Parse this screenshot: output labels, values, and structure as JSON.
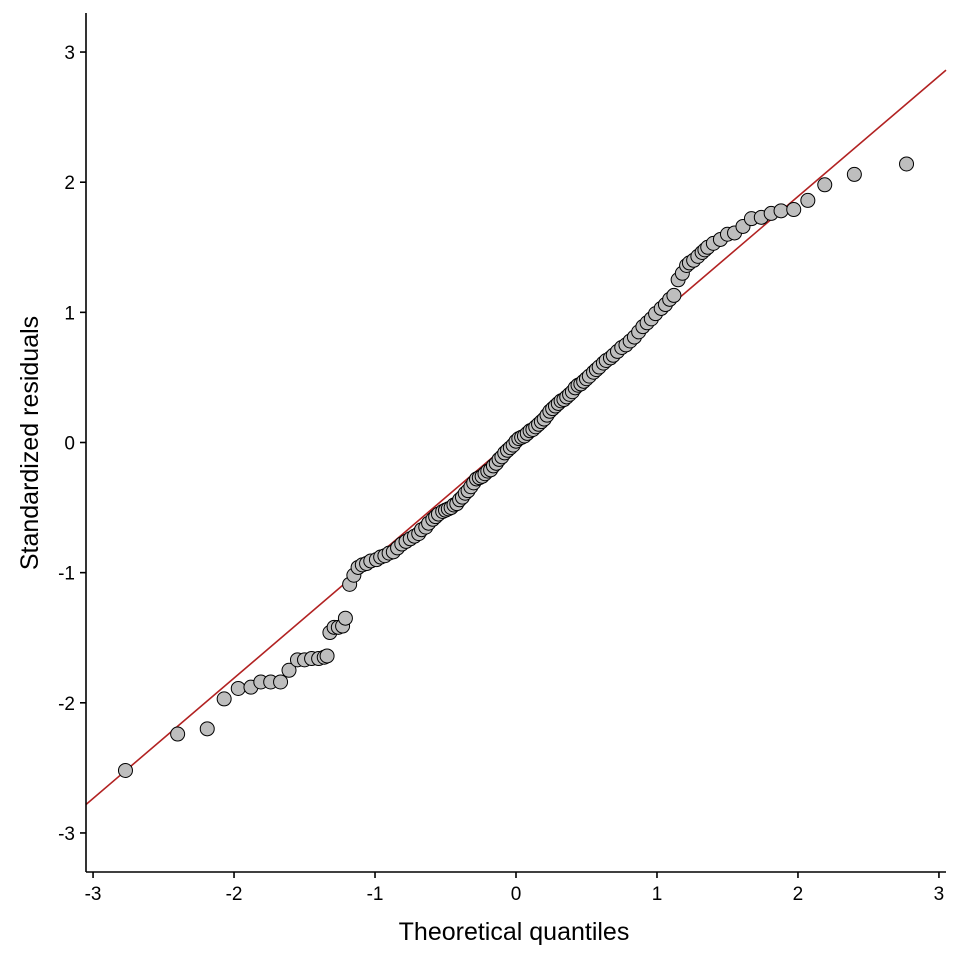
{
  "chart_data": {
    "type": "scatter",
    "title": "",
    "xlabel": "Theoretical quantiles",
    "ylabel": "Standardized residuals",
    "xlim": [
      -3.05,
      3.05
    ],
    "ylim": [
      -3.3,
      3.3
    ],
    "x_ticks": [
      -3,
      -2,
      -1,
      0,
      1,
      2,
      3
    ],
    "y_ticks": [
      -3,
      -2,
      -1,
      0,
      1,
      2,
      3
    ],
    "x_tick_labels": [
      "-3",
      "-2",
      "-1",
      "0",
      "1",
      "2",
      "3"
    ],
    "y_tick_labels": [
      "-3",
      "-2",
      "-1",
      "0",
      "1",
      "2",
      "3"
    ],
    "grid": false,
    "legend": "none",
    "point_fill": "#bebebe",
    "point_stroke": "#000000",
    "reference_line": {
      "color": "#b22222",
      "intercept": 0.04,
      "slope": 0.925
    },
    "points": [
      [
        -2.77,
        -2.52
      ],
      [
        -2.4,
        -2.24
      ],
      [
        -2.19,
        -2.2
      ],
      [
        -2.07,
        -1.97
      ],
      [
        -1.97,
        -1.89
      ],
      [
        -1.88,
        -1.88
      ],
      [
        -1.81,
        -1.84
      ],
      [
        -1.74,
        -1.84
      ],
      [
        -1.67,
        -1.84
      ],
      [
        -1.61,
        -1.75
      ],
      [
        -1.55,
        -1.67
      ],
      [
        -1.5,
        -1.67
      ],
      [
        -1.45,
        -1.66
      ],
      [
        -1.4,
        -1.66
      ],
      [
        -1.36,
        -1.65
      ],
      [
        -1.34,
        -1.64
      ],
      [
        -1.32,
        -1.46
      ],
      [
        -1.29,
        -1.42
      ],
      [
        -1.26,
        -1.42
      ],
      [
        -1.23,
        -1.41
      ],
      [
        -1.21,
        -1.35
      ],
      [
        -1.18,
        -1.09
      ],
      [
        -1.15,
        -1.02
      ],
      [
        -1.12,
        -0.96
      ],
      [
        -1.09,
        -0.94
      ],
      [
        -1.06,
        -0.93
      ],
      [
        -1.03,
        -0.91
      ],
      [
        -0.99,
        -0.9
      ],
      [
        -0.96,
        -0.88
      ],
      [
        -0.93,
        -0.87
      ],
      [
        -0.9,
        -0.85
      ],
      [
        -0.87,
        -0.84
      ],
      [
        -0.84,
        -0.81
      ],
      [
        -0.81,
        -0.78
      ],
      [
        -0.78,
        -0.76
      ],
      [
        -0.75,
        -0.74
      ],
      [
        -0.72,
        -0.72
      ],
      [
        -0.69,
        -0.7
      ],
      [
        -0.67,
        -0.67
      ],
      [
        -0.64,
        -0.65
      ],
      [
        -0.62,
        -0.62
      ],
      [
        -0.59,
        -0.59
      ],
      [
        -0.57,
        -0.57
      ],
      [
        -0.55,
        -0.55
      ],
      [
        -0.52,
        -0.53
      ],
      [
        -0.5,
        -0.52
      ],
      [
        -0.48,
        -0.51
      ],
      [
        -0.46,
        -0.5
      ],
      [
        -0.44,
        -0.48
      ],
      [
        -0.42,
        -0.47
      ],
      [
        -0.4,
        -0.44
      ],
      [
        -0.38,
        -0.42
      ],
      [
        -0.36,
        -0.39
      ],
      [
        -0.34,
        -0.37
      ],
      [
        -0.32,
        -0.34
      ],
      [
        -0.3,
        -0.31
      ],
      [
        -0.28,
        -0.28
      ],
      [
        -0.26,
        -0.27
      ],
      [
        -0.24,
        -0.26
      ],
      [
        -0.22,
        -0.24
      ],
      [
        -0.2,
        -0.22
      ],
      [
        -0.18,
        -0.21
      ],
      [
        -0.16,
        -0.18
      ],
      [
        -0.14,
        -0.16
      ],
      [
        -0.12,
        -0.13
      ],
      [
        -0.1,
        -0.11
      ],
      [
        -0.08,
        -0.08
      ],
      [
        -0.06,
        -0.06
      ],
      [
        -0.04,
        -0.04
      ],
      [
        -0.02,
        -0.02
      ],
      [
        0.0,
        0.01
      ],
      [
        0.02,
        0.03
      ],
      [
        0.04,
        0.04
      ],
      [
        0.06,
        0.05
      ],
      [
        0.08,
        0.07
      ],
      [
        0.1,
        0.09
      ],
      [
        0.12,
        0.1
      ],
      [
        0.14,
        0.12
      ],
      [
        0.16,
        0.14
      ],
      [
        0.18,
        0.16
      ],
      [
        0.2,
        0.18
      ],
      [
        0.22,
        0.21
      ],
      [
        0.24,
        0.24
      ],
      [
        0.26,
        0.26
      ],
      [
        0.28,
        0.28
      ],
      [
        0.3,
        0.3
      ],
      [
        0.32,
        0.32
      ],
      [
        0.34,
        0.33
      ],
      [
        0.36,
        0.35
      ],
      [
        0.38,
        0.37
      ],
      [
        0.4,
        0.39
      ],
      [
        0.42,
        0.42
      ],
      [
        0.44,
        0.44
      ],
      [
        0.46,
        0.45
      ],
      [
        0.48,
        0.47
      ],
      [
        0.5,
        0.49
      ],
      [
        0.52,
        0.51
      ],
      [
        0.55,
        0.54
      ],
      [
        0.57,
        0.56
      ],
      [
        0.59,
        0.58
      ],
      [
        0.62,
        0.61
      ],
      [
        0.64,
        0.63
      ],
      [
        0.67,
        0.65
      ],
      [
        0.69,
        0.67
      ],
      [
        0.72,
        0.7
      ],
      [
        0.75,
        0.73
      ],
      [
        0.78,
        0.75
      ],
      [
        0.81,
        0.78
      ],
      [
        0.84,
        0.81
      ],
      [
        0.87,
        0.85
      ],
      [
        0.9,
        0.89
      ],
      [
        0.93,
        0.92
      ],
      [
        0.96,
        0.95
      ],
      [
        0.99,
        0.99
      ],
      [
        1.03,
        1.03
      ],
      [
        1.06,
        1.06
      ],
      [
        1.09,
        1.1
      ],
      [
        1.12,
        1.13
      ],
      [
        1.15,
        1.25
      ],
      [
        1.18,
        1.3
      ],
      [
        1.21,
        1.36
      ],
      [
        1.23,
        1.38
      ],
      [
        1.26,
        1.4
      ],
      [
        1.29,
        1.43
      ],
      [
        1.32,
        1.46
      ],
      [
        1.34,
        1.48
      ],
      [
        1.36,
        1.5
      ],
      [
        1.4,
        1.53
      ],
      [
        1.45,
        1.56
      ],
      [
        1.5,
        1.6
      ],
      [
        1.55,
        1.61
      ],
      [
        1.61,
        1.66
      ],
      [
        1.67,
        1.72
      ],
      [
        1.74,
        1.73
      ],
      [
        1.81,
        1.76
      ],
      [
        1.88,
        1.78
      ],
      [
        1.97,
        1.79
      ],
      [
        2.07,
        1.86
      ],
      [
        2.19,
        1.98
      ],
      [
        2.4,
        2.06
      ],
      [
        2.77,
        2.14
      ]
    ]
  }
}
